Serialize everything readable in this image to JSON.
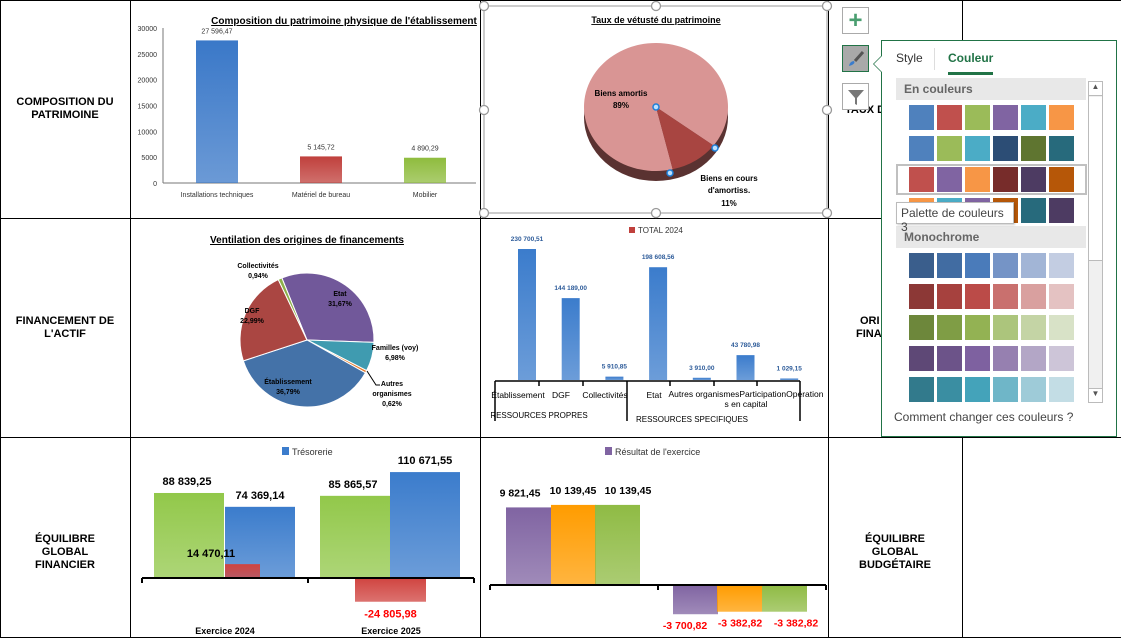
{
  "row_labels": [
    "COMPOSITION DU PATRIMOINE",
    "FINANCEMENT DE L'ACTIF",
    "ÉQUILIBRE GLOBAL FINANCIER"
  ],
  "right_labels": {
    "r1": "TAUX D",
    "r2a": "ORI",
    "r2b": "FINA",
    "r3": "ÉQUILIBRE GLOBAL BUDGÉTAIRE"
  },
  "chart_data": [
    {
      "id": "patrimoine",
      "type": "bar",
      "title": "Composition du patrimoine physique de l'établissement",
      "categories": [
        "Installations techniques",
        "Matériel de bureau",
        "Mobilier"
      ],
      "values": [
        27596.47,
        5145.72,
        4890.29
      ],
      "labels": [
        "27 596,47",
        "5 145,72",
        "4 890,29"
      ],
      "colors": [
        "#3a78c8",
        "#c0403c",
        "#8fbc3e"
      ],
      "ylim": [
        0,
        30000
      ],
      "yticks": [
        "0",
        "5000",
        "10000",
        "15000",
        "20000",
        "25000",
        "30000"
      ]
    },
    {
      "id": "vetuste",
      "type": "pie",
      "title": "Taux de vétusté du patrimoine",
      "slices": [
        {
          "name": "Biens amortis",
          "value": 89,
          "label": "89%",
          "color": "#d99594"
        },
        {
          "name": "Biens en cours d'amortiss.",
          "value": 11,
          "label": "11%",
          "color": "#a84541"
        }
      ]
    },
    {
      "id": "financements",
      "type": "pie",
      "title": "Ventilation des origines de financements",
      "slices": [
        {
          "name": "Etat",
          "value": 31.67,
          "label": "31,67%",
          "color": "#71589a"
        },
        {
          "name": "Familles (voy)",
          "value": 6.98,
          "label": "6,98%",
          "color": "#3f9bb0"
        },
        {
          "name": "Autres organismes",
          "value": 0.62,
          "label": "0,62%",
          "color": "#e77b2c"
        },
        {
          "name": "Établissement",
          "value": 36.79,
          "label": "36,79%",
          "color": "#4472a8"
        },
        {
          "name": "DGF",
          "value": 22.99,
          "label": "22,99%",
          "color": "#aa4642"
        },
        {
          "name": "Collectivités",
          "value": 0.94,
          "label": "0,94%",
          "color": "#8db04a"
        }
      ]
    },
    {
      "id": "total2024",
      "type": "bar",
      "legend": "TOTAL 2024",
      "legend_color": "#c0403c",
      "categories": [
        "Établissement",
        "DGF",
        "Collectivités",
        "Etat",
        "Autres organismes",
        "Participations",
        "Opérations en capital"
      ],
      "category_display": [
        "Établissement",
        "DGF",
        "Collectivités",
        "Etat",
        "Autres organismesParticipationOpérations en capital"
      ],
      "groups": [
        "RESSOURCES PROPRES",
        "RESSOURCES SPECIFIQUES"
      ],
      "values": [
        230700.51,
        144189.0,
        5910.85,
        198608.56,
        3910.0,
        43780.98,
        1029.15
      ],
      "labels": [
        "230 700,51",
        "144 189,00",
        "5 910,85",
        "198 608,56",
        "3 910,00",
        "43 780,98",
        "1 029,15"
      ]
    },
    {
      "id": "tresorerie",
      "type": "bar",
      "legend": "Trésorerie",
      "categories": [
        "Exercice 2024",
        "Exercice 2025"
      ],
      "series": [
        {
          "color": "#92c84a",
          "values": [
            88839.25,
            85865.57
          ],
          "labels": [
            "88 839,25",
            "85 865,57"
          ]
        },
        {
          "color": "#3b7ccc",
          "values": [
            74369.14,
            110671.55
          ],
          "labels": [
            "74 369,14",
            "110 671,55"
          ]
        },
        {
          "color": "#d04440",
          "values": [
            14470.11,
            -24805.98
          ],
          "labels": [
            "14 470,11",
            "-24 805,98"
          ]
        }
      ]
    },
    {
      "id": "resultat",
      "type": "bar",
      "legend": "Résultat de l'exercice",
      "series": [
        {
          "color": "#8064a2",
          "values": [
            9821.45,
            -3700.82
          ],
          "labels": [
            "9 821,45",
            "-3 700,82"
          ]
        },
        {
          "color": "#ff9c00",
          "values": [
            10139.45,
            -3382.82
          ],
          "labels": [
            "10 139,45",
            "-3 382,82"
          ]
        },
        {
          "color": "#8fbb44",
          "values": [
            10139.45,
            -3382.82
          ],
          "labels": [
            "10 139,45",
            "-3 382,82"
          ]
        }
      ]
    }
  ],
  "popup": {
    "tabs": [
      "Style",
      "Couleur"
    ],
    "active_tab": "Couleur",
    "section1": "En couleurs",
    "section2": "Monochrome",
    "tooltip": "Palette de couleurs 3",
    "help_link": "Comment changer ces couleurs ?",
    "colorful": [
      [
        "#4f81bd",
        "#c0504d",
        "#9bbb59",
        "#8064a2",
        "#4bacc6",
        "#f79646"
      ],
      [
        "#4f81bd",
        "#9bbb59",
        "#4bacc6",
        "#2c4d75",
        "#5f7530",
        "#276a7c"
      ],
      [
        "#c0504d",
        "#8064a2",
        "#f79646",
        "#772c2a",
        "#4d3b62",
        "#b65708"
      ],
      [
        "#f79646",
        "#4bacc6",
        "#8064a2",
        "#b65708",
        "#276a7c",
        "#4d3b62"
      ]
    ],
    "mono": [
      [
        "#3a5e8c",
        "#416ca2",
        "#4a7bba",
        "#7594c6",
        "#a2b5d6",
        "#c3cde2"
      ],
      [
        "#8c3836",
        "#a6413e",
        "#bb4b48",
        "#c9706e",
        "#d9a09f",
        "#e4c2c2"
      ],
      [
        "#6d873b",
        "#7f9d45",
        "#93b253",
        "#acc57c",
        "#c4d4a5",
        "#d8e2c7"
      ],
      [
        "#5e4876",
        "#6c5389",
        "#7e61a0",
        "#9680b0",
        "#b3a6c6",
        "#cdc5d8"
      ],
      [
        "#327a8c",
        "#3a8ea2",
        "#44a3ba",
        "#6fb6c8",
        "#9ecbd8",
        "#c3dde5"
      ]
    ]
  }
}
